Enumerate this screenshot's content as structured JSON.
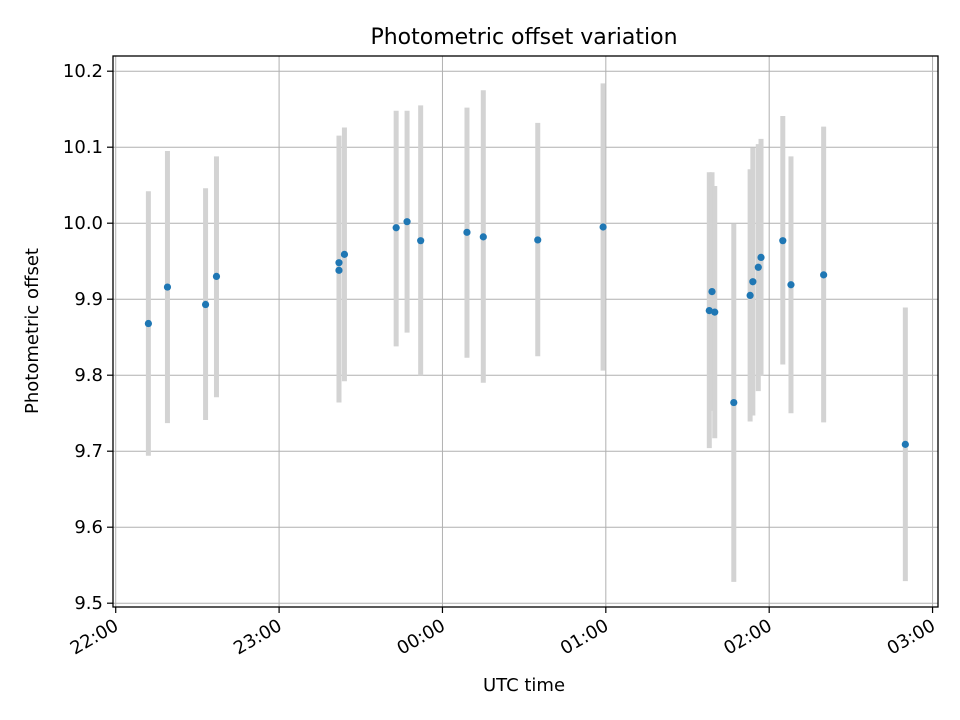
{
  "chart_data": {
    "type": "scatter",
    "title": "Photometric offset variation",
    "xlabel": "UTC time",
    "ylabel": "Photometric offset",
    "x_ticks": [
      "22:00",
      "23:00",
      "00:00",
      "01:00",
      "02:00",
      "03:00"
    ],
    "y_ticks": [
      "9.5",
      "9.6",
      "9.7",
      "9.8",
      "9.9",
      "10.0",
      "10.1",
      "10.2"
    ],
    "xlim": [
      "21:59",
      "03:02"
    ],
    "ylim": [
      9.495,
      10.22
    ],
    "grid": true,
    "colors": {
      "point": "#1f77b4",
      "errorbar": "#d3d3d3",
      "grid": "#b0b0b0"
    },
    "series": [
      {
        "points": [
          {
            "x": "22:12",
            "y": 9.868,
            "ylow": 9.694,
            "yhigh": 10.042
          },
          {
            "x": "22:19",
            "y": 9.916,
            "ylow": 9.737,
            "yhigh": 10.095
          },
          {
            "x": "22:33",
            "y": 9.893,
            "ylow": 9.741,
            "yhigh": 10.046
          },
          {
            "x": "22:37",
            "y": 9.93,
            "ylow": 9.771,
            "yhigh": 10.088
          },
          {
            "x": "23:22",
            "y": 9.938,
            "ylow": 9.764,
            "yhigh": 10.115
          },
          {
            "x": "23:22",
            "y": 9.948,
            "ylow": 9.764,
            "yhigh": 10.115
          },
          {
            "x": "23:24",
            "y": 9.959,
            "ylow": 9.792,
            "yhigh": 10.126
          },
          {
            "x": "23:43",
            "y": 9.994,
            "ylow": 9.838,
            "yhigh": 10.148
          },
          {
            "x": "23:47",
            "y": 10.002,
            "ylow": 9.856,
            "yhigh": 10.148
          },
          {
            "x": "23:52",
            "y": 9.977,
            "ylow": 9.8,
            "yhigh": 10.155
          },
          {
            "x": "00:09",
            "y": 9.988,
            "ylow": 9.823,
            "yhigh": 10.152
          },
          {
            "x": "00:15",
            "y": 9.982,
            "ylow": 9.79,
            "yhigh": 10.175
          },
          {
            "x": "00:35",
            "y": 9.978,
            "ylow": 9.825,
            "yhigh": 10.132
          },
          {
            "x": "00:59",
            "y": 9.995,
            "ylow": 9.806,
            "yhigh": 10.184
          },
          {
            "x": "01:38",
            "y": 9.885,
            "ylow": 9.704,
            "yhigh": 10.067
          },
          {
            "x": "01:39",
            "y": 9.91,
            "ylow": 9.753,
            "yhigh": 10.067
          },
          {
            "x": "01:40",
            "y": 9.883,
            "ylow": 9.717,
            "yhigh": 10.049
          },
          {
            "x": "01:47",
            "y": 9.764,
            "ylow": 9.528,
            "yhigh": 9.999
          },
          {
            "x": "01:53",
            "y": 9.905,
            "ylow": 9.739,
            "yhigh": 10.071
          },
          {
            "x": "01:54",
            "y": 9.923,
            "ylow": 9.747,
            "yhigh": 10.099
          },
          {
            "x": "01:56",
            "y": 9.942,
            "ylow": 9.779,
            "yhigh": 10.104
          },
          {
            "x": "01:57",
            "y": 9.955,
            "ylow": 9.799,
            "yhigh": 10.111
          },
          {
            "x": "02:05",
            "y": 9.977,
            "ylow": 9.814,
            "yhigh": 10.141
          },
          {
            "x": "02:08",
            "y": 9.919,
            "ylow": 9.75,
            "yhigh": 10.088
          },
          {
            "x": "02:20",
            "y": 9.932,
            "ylow": 9.738,
            "yhigh": 10.127
          },
          {
            "x": "02:50",
            "y": 9.709,
            "ylow": 9.529,
            "yhigh": 9.889
          }
        ]
      }
    ]
  }
}
